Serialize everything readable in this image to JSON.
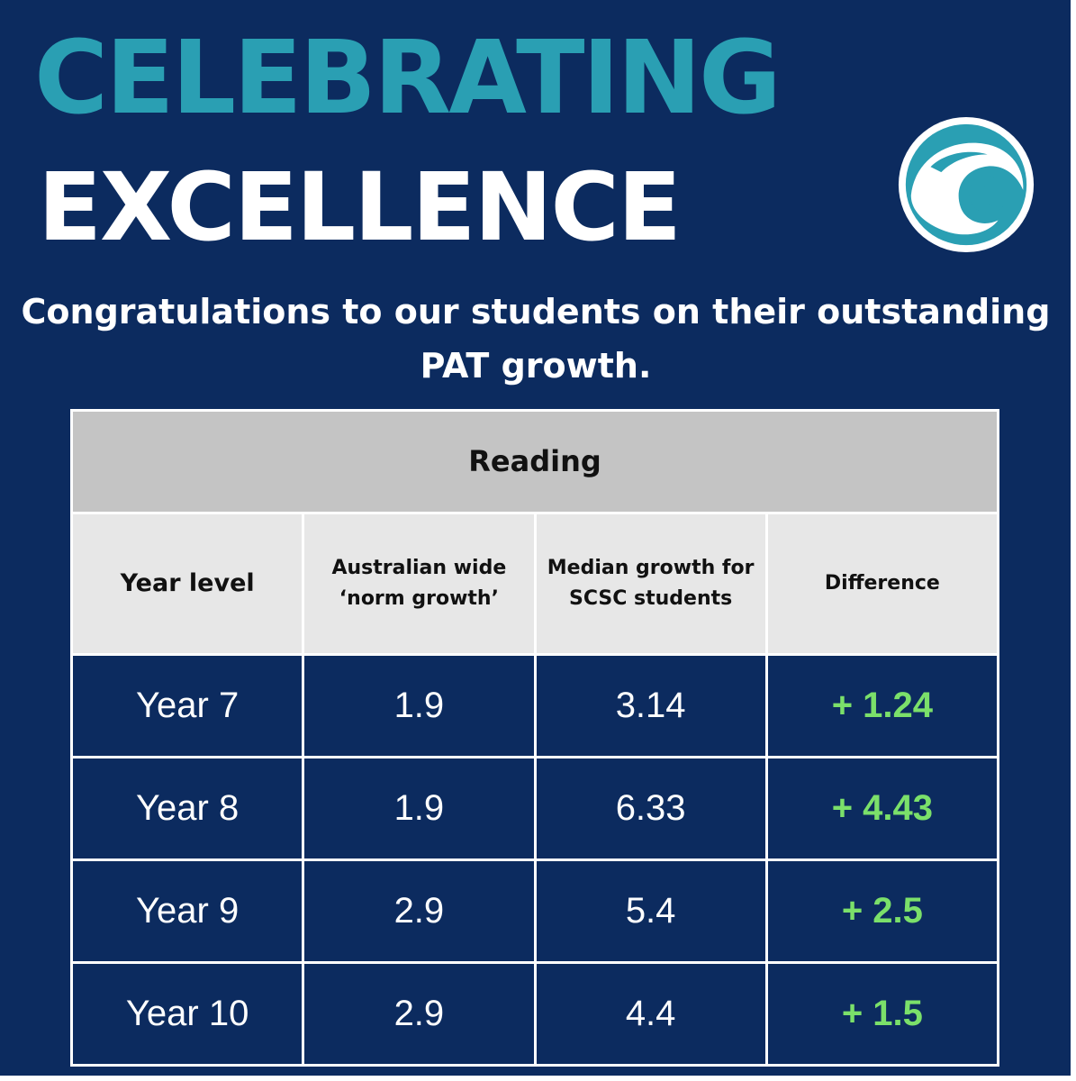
{
  "header": {
    "title_line1": "CELEBRATING",
    "title_line2": "EXCELLENCE",
    "subtitle": "Congratulations to our students on their outstanding PAT growth."
  },
  "colors": {
    "background": "#0c2b5f",
    "accent_teal": "#2a9fb3",
    "positive_green": "#7be06a",
    "section_header_bg": "#c4c4c4",
    "column_header_bg": "#e7e7e7"
  },
  "logo": {
    "icon": "wave-logo-icon"
  },
  "table": {
    "section": "Reading",
    "columns": [
      "Year level",
      "Australian wide ‘norm growth’",
      "Median growth for SCSC students",
      "Difference"
    ],
    "rows": [
      {
        "year": "Year 7",
        "norm": "1.9",
        "median": "3.14",
        "difference": "+ 1.24"
      },
      {
        "year": "Year 8",
        "norm": "1.9",
        "median": "6.33",
        "difference": "+ 4.43"
      },
      {
        "year": "Year 9",
        "norm": "2.9",
        "median": "5.4",
        "difference": "+ 2.5"
      },
      {
        "year": "Year 10",
        "norm": "2.9",
        "median": "4.4",
        "difference": "+ 1.5"
      }
    ]
  }
}
